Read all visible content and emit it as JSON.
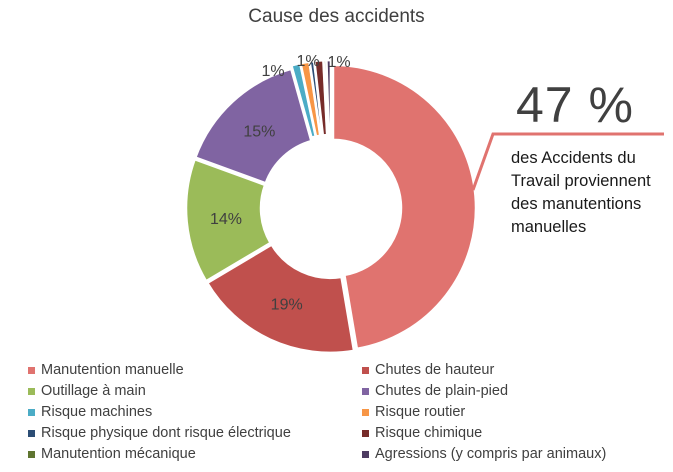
{
  "chart_data": {
    "type": "pie",
    "title": "Cause des accidents",
    "start_angle_deg": 0,
    "direction": "clockwise",
    "donut": true,
    "categories": [
      "Manutention manuelle",
      "Chutes de hauteur",
      "Outillage à main",
      "Chutes de plain-pied",
      "Risque machines",
      "Risque routier",
      "Risque physique dont risque électrique",
      "Risque chimique",
      "Manutention mécanique",
      "Agressions (y compris par animaux)"
    ],
    "values": [
      47,
      19,
      14,
      15,
      1,
      1,
      0.5,
      1,
      0.3,
      0.5
    ],
    "data_labels": [
      "",
      "19%",
      "14%",
      "15%",
      "1%",
      "1%",
      "",
      "",
      "",
      "1%"
    ],
    "colors": [
      "#e0736f",
      "#c0504d",
      "#9bbb59",
      "#8064a2",
      "#4bacc6",
      "#f79646",
      "#2c4d75",
      "#772c2a",
      "#5f7530",
      "#4d3b62"
    ],
    "legend_position": "bottom",
    "annotation": {
      "value": "47 %",
      "text": "des Accidents du Travail proviennent des manutentions manuelles",
      "color": "#e0736f"
    }
  }
}
